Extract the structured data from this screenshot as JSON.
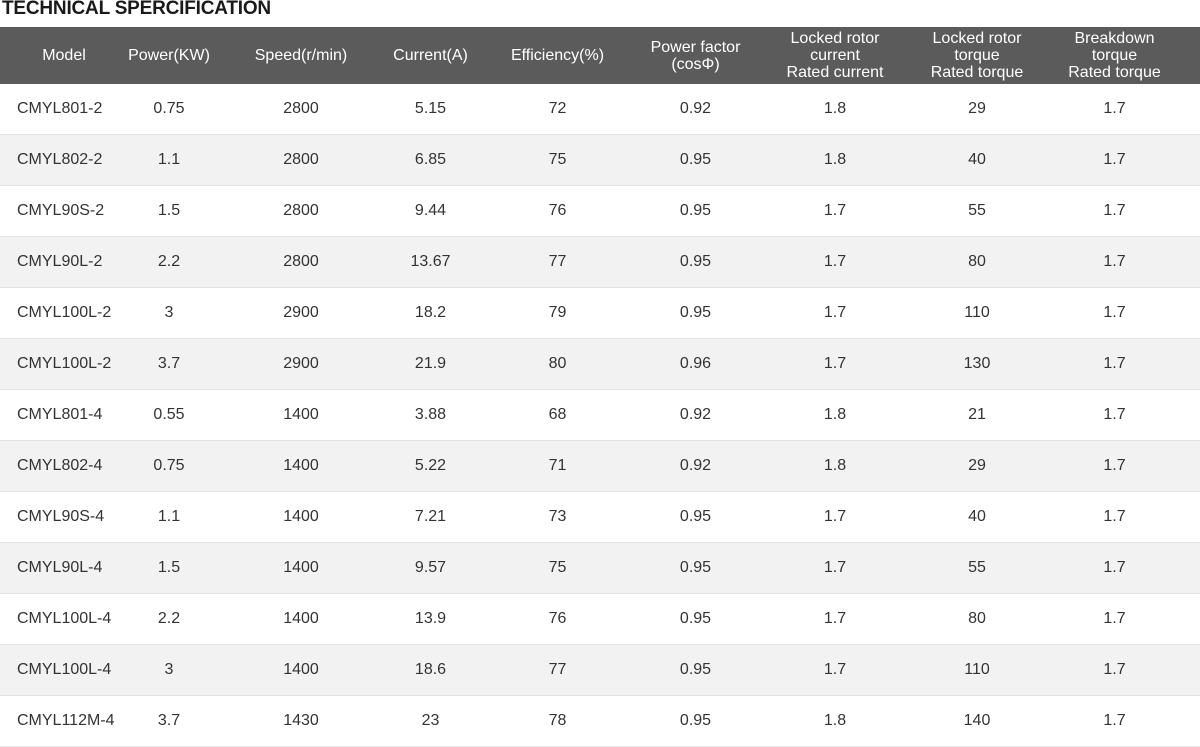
{
  "title": "TECHNICAL SPERCIFICATION",
  "headers": [
    {
      "lines": [
        "Model"
      ]
    },
    {
      "lines": [
        "Power(KW)"
      ]
    },
    {
      "lines": [
        "Speed(r/min)"
      ]
    },
    {
      "lines": [
        "Current(A)"
      ]
    },
    {
      "lines": [
        "Efficiency(%)"
      ]
    },
    {
      "lines": [
        "Power factor",
        "(cosΦ)"
      ]
    },
    {
      "lines": [
        "Locked rotor",
        "current",
        "Rated current"
      ]
    },
    {
      "lines": [
        "Locked rotor",
        "torque",
        "Rated torque"
      ]
    },
    {
      "lines": [
        "Breakdown",
        "torque",
        "Rated torque"
      ]
    }
  ],
  "rows": [
    [
      "CMYL801-2",
      "0.75",
      "2800",
      "5.15",
      "72",
      "0.92",
      "1.8",
      "29",
      "1.7"
    ],
    [
      "CMYL802-2",
      "1.1",
      "2800",
      "6.85",
      "75",
      "0.95",
      "1.8",
      "40",
      "1.7"
    ],
    [
      "CMYL90S-2",
      "1.5",
      "2800",
      "9.44",
      "76",
      "0.95",
      "1.7",
      "55",
      "1.7"
    ],
    [
      "CMYL90L-2",
      "2.2",
      "2800",
      "13.67",
      "77",
      "0.95",
      "1.7",
      "80",
      "1.7"
    ],
    [
      "CMYL100L-2",
      "3",
      "2900",
      "18.2",
      "79",
      "0.95",
      "1.7",
      "110",
      "1.7"
    ],
    [
      "CMYL100L-2",
      "3.7",
      "2900",
      "21.9",
      "80",
      "0.96",
      "1.7",
      "130",
      "1.7"
    ],
    [
      "CMYL801-4",
      "0.55",
      "1400",
      "3.88",
      "68",
      "0.92",
      "1.8",
      "21",
      "1.7"
    ],
    [
      "CMYL802-4",
      "0.75",
      "1400",
      "5.22",
      "71",
      "0.92",
      "1.8",
      "29",
      "1.7"
    ],
    [
      "CMYL90S-4",
      "1.1",
      "1400",
      "7.21",
      "73",
      "0.95",
      "1.7",
      "40",
      "1.7"
    ],
    [
      "CMYL90L-4",
      "1.5",
      "1400",
      "9.57",
      "75",
      "0.95",
      "1.7",
      "55",
      "1.7"
    ],
    [
      "CMYL100L-4",
      "2.2",
      "1400",
      "13.9",
      "76",
      "0.95",
      "1.7",
      "80",
      "1.7"
    ],
    [
      "CMYL100L-4",
      "3",
      "1400",
      "18.6",
      "77",
      "0.95",
      "1.7",
      "110",
      "1.7"
    ],
    [
      "CMYL112M-4",
      "3.7",
      "1430",
      "23",
      "78",
      "0.95",
      "1.8",
      "140",
      "1.7"
    ]
  ],
  "colors": {
    "header_bg": "#5b5b5b",
    "header_text": "#ffffff",
    "row_alt_bg": "#f2f2f2",
    "body_text": "#333333"
  }
}
